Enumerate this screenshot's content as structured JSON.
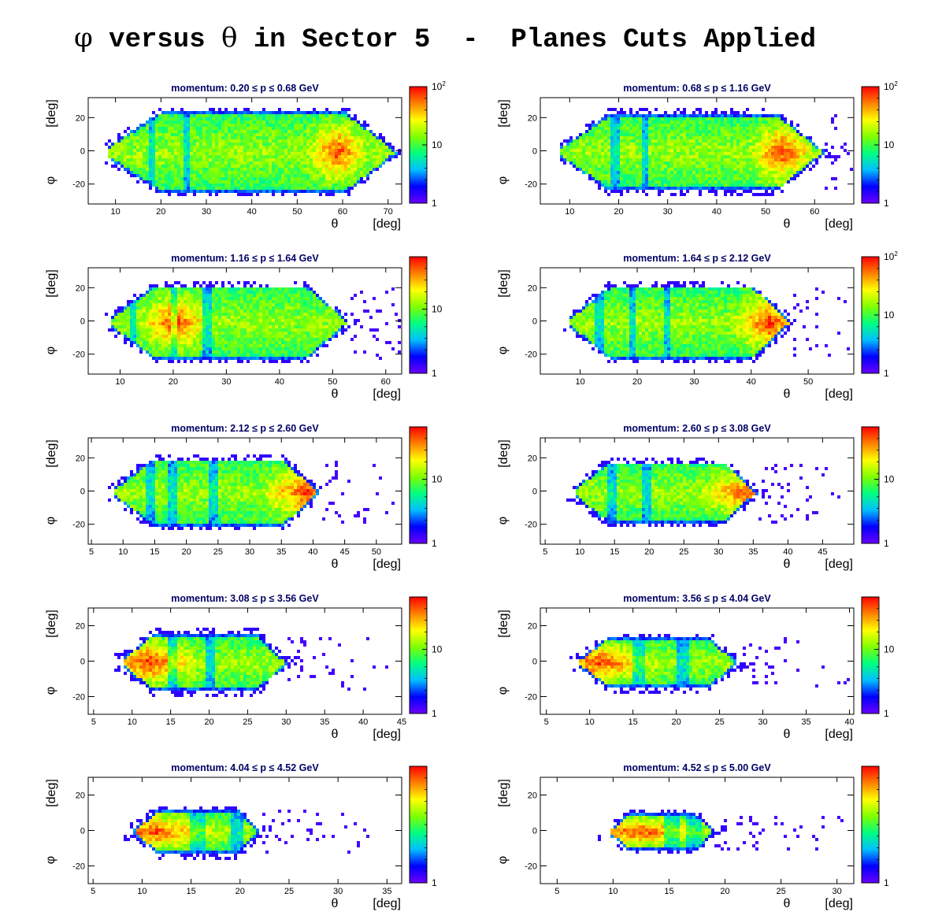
{
  "title": {
    "phi": "φ",
    "part1": " versus ",
    "theta": "θ",
    "part2": " in Sector 5  -  Planes Cuts Applied"
  },
  "colors": {
    "frame": "#000000",
    "title_text": "#000066",
    "palette": [
      "#6a00ff",
      "#0000ff",
      "#00bfff",
      "#00ff80",
      "#80ff00",
      "#ffff00",
      "#ff8000",
      "#ff0000"
    ]
  },
  "chart_data": [
    {
      "type": "heatmap",
      "title": "momentum: 0.20 ≤ p ≤ 0.68 GeV",
      "xlabel": "θ",
      "xunit": "[deg]",
      "ylabel": "φ",
      "yunit": "[deg]",
      "xlim": [
        4,
        73
      ],
      "ylim": [
        -32,
        32
      ],
      "xticks": [
        10,
        20,
        30,
        40,
        50,
        60,
        70
      ],
      "yticks": [
        -20,
        0,
        20
      ],
      "color_scale": "log",
      "zticks": [
        "1",
        "10",
        "10²"
      ],
      "theta_min": 8,
      "theta_max": 72,
      "hotspot_theta": 58.5,
      "phi_half_width": 24,
      "bands": [
        17.5,
        25
      ]
    },
    {
      "type": "heatmap",
      "title": "momentum: 0.68 ≤ p ≤ 1.16 GeV",
      "xlabel": "θ",
      "xunit": "[deg]",
      "ylabel": "φ",
      "yunit": "[deg]",
      "xlim": [
        4,
        68
      ],
      "ylim": [
        -32,
        32
      ],
      "xticks": [
        10,
        20,
        30,
        40,
        50,
        60
      ],
      "yticks": [
        -20,
        0,
        20
      ],
      "color_scale": "log",
      "zticks": [
        "1",
        "10",
        "10²"
      ],
      "theta_min": 8,
      "theta_max": 62,
      "hotspot_theta": 53,
      "phi_half_width": 23,
      "bands": [
        19,
        25
      ]
    },
    {
      "type": "heatmap",
      "title": "momentum: 1.16 ≤ p ≤ 1.64 GeV",
      "xlabel": "θ",
      "xunit": "[deg]",
      "ylabel": "φ",
      "yunit": "[deg]",
      "xlim": [
        4,
        63
      ],
      "ylim": [
        -32,
        32
      ],
      "xticks": [
        10,
        20,
        30,
        40,
        50,
        60
      ],
      "yticks": [
        -20,
        0,
        20
      ],
      "color_scale": "log",
      "zticks": [
        "1",
        "10"
      ],
      "theta_min": 8,
      "theta_max": 53,
      "hotspot_theta": 20,
      "phi_half_width": 22,
      "bands": [
        12,
        20,
        26
      ]
    },
    {
      "type": "heatmap",
      "title": "momentum: 1.64 ≤ p ≤ 2.12 GeV",
      "xlabel": "θ",
      "xunit": "[deg]",
      "ylabel": "φ",
      "yunit": "[deg]",
      "xlim": [
        3,
        58
      ],
      "ylim": [
        -32,
        32
      ],
      "xticks": [
        10,
        20,
        30,
        40,
        50
      ],
      "yticks": [
        -20,
        0,
        20
      ],
      "color_scale": "log",
      "zticks": [
        "1",
        "10",
        "10²"
      ],
      "theta_min": 8,
      "theta_max": 47,
      "hotspot_theta": 43,
      "phi_half_width": 22,
      "bands": [
        13,
        19,
        25
      ]
    },
    {
      "type": "heatmap",
      "title": "momentum: 2.12 ≤ p ≤ 2.60 GeV",
      "xlabel": "θ",
      "xunit": "[deg]",
      "ylabel": "φ",
      "yunit": "[deg]",
      "xlim": [
        4.5,
        54
      ],
      "ylim": [
        -32,
        32
      ],
      "xticks": [
        5,
        10,
        15,
        20,
        25,
        30,
        35,
        40,
        45,
        50
      ],
      "yticks": [
        -20,
        0,
        20
      ],
      "color_scale": "log",
      "zticks": [
        "1",
        "10"
      ],
      "theta_min": 8.5,
      "theta_max": 41,
      "hotspot_theta": 38.5,
      "phi_half_width": 20,
      "bands": [
        14,
        17.5,
        24
      ]
    },
    {
      "type": "heatmap",
      "title": "momentum: 2.60 ≤ p ≤ 3.08 GeV",
      "xlabel": "θ",
      "xunit": "[deg]",
      "ylabel": "φ",
      "yunit": "[deg]",
      "xlim": [
        4.3,
        49.5
      ],
      "ylim": [
        -32,
        32
      ],
      "xticks": [
        5,
        10,
        15,
        20,
        25,
        30,
        35,
        40,
        45
      ],
      "yticks": [
        -20,
        0,
        20
      ],
      "color_scale": "log",
      "zticks": [
        "1",
        "10"
      ],
      "theta_min": 9,
      "theta_max": 35.5,
      "hotspot_theta": 34,
      "phi_half_width": 18,
      "bands": [
        14.5,
        19.5
      ]
    },
    {
      "type": "heatmap",
      "title": "momentum: 3.08 ≤ p ≤ 3.56 GeV",
      "xlabel": "θ",
      "xunit": "[deg]",
      "ylabel": "φ",
      "yunit": "[deg]",
      "xlim": [
        4.3,
        45
      ],
      "ylim": [
        -30,
        30
      ],
      "xticks": [
        5,
        10,
        15,
        20,
        25,
        30,
        35,
        40,
        45
      ],
      "yticks": [
        -20,
        0,
        20
      ],
      "color_scale": "log",
      "zticks": [
        "1",
        "10"
      ],
      "theta_min": 8.5,
      "theta_max": 30,
      "hotspot_theta": 12,
      "phi_half_width": 16,
      "bands": [
        15,
        20
      ]
    },
    {
      "type": "heatmap",
      "title": "momentum: 3.56 ≤ p ≤ 4.04 GeV",
      "xlabel": "θ",
      "xunit": "[deg]",
      "ylabel": "φ",
      "yunit": "[deg]",
      "xlim": [
        4.3,
        40.5
      ],
      "ylim": [
        -30,
        30
      ],
      "xticks": [
        5,
        10,
        15,
        20,
        25,
        30,
        35,
        40
      ],
      "yticks": [
        -20,
        0,
        20
      ],
      "color_scale": "log",
      "zticks": [
        "1",
        "10"
      ],
      "theta_min": 8.5,
      "theta_max": 27,
      "hotspot_theta": 11,
      "phi_half_width": 14,
      "bands": [
        15.5,
        20.5
      ]
    },
    {
      "type": "heatmap",
      "title": "momentum: 4.04 ≤ p ≤ 4.52 GeV",
      "xlabel": "θ",
      "xunit": "[deg]",
      "ylabel": "φ",
      "yunit": "[deg]",
      "xlim": [
        4.5,
        36.5
      ],
      "ylim": [
        -30,
        30
      ],
      "xticks": [
        5,
        10,
        15,
        20,
        25,
        30,
        35
      ],
      "yticks": [
        -20,
        0,
        20
      ],
      "color_scale": "log",
      "zticks": [
        "1"
      ],
      "theta_min": 9,
      "theta_max": 22,
      "hotspot_theta": 11,
      "phi_half_width": 12,
      "bands": [
        15.5,
        19.5
      ]
    },
    {
      "type": "heatmap",
      "title": "momentum: 4.52 ≤ p ≤ 5.00 GeV",
      "xlabel": "θ",
      "xunit": "[deg]",
      "ylabel": "φ",
      "yunit": "[deg]",
      "xlim": [
        3.5,
        31.5
      ],
      "ylim": [
        -30,
        30
      ],
      "xticks": [
        5,
        10,
        15,
        20,
        25,
        30
      ],
      "yticks": [
        -20,
        0,
        20
      ],
      "color_scale": "log",
      "zticks": [
        "1"
      ],
      "theta_min": 9.5,
      "theta_max": 19,
      "hotspot_theta": 12,
      "phi_half_width": 10,
      "bands": [
        15,
        17
      ]
    }
  ]
}
